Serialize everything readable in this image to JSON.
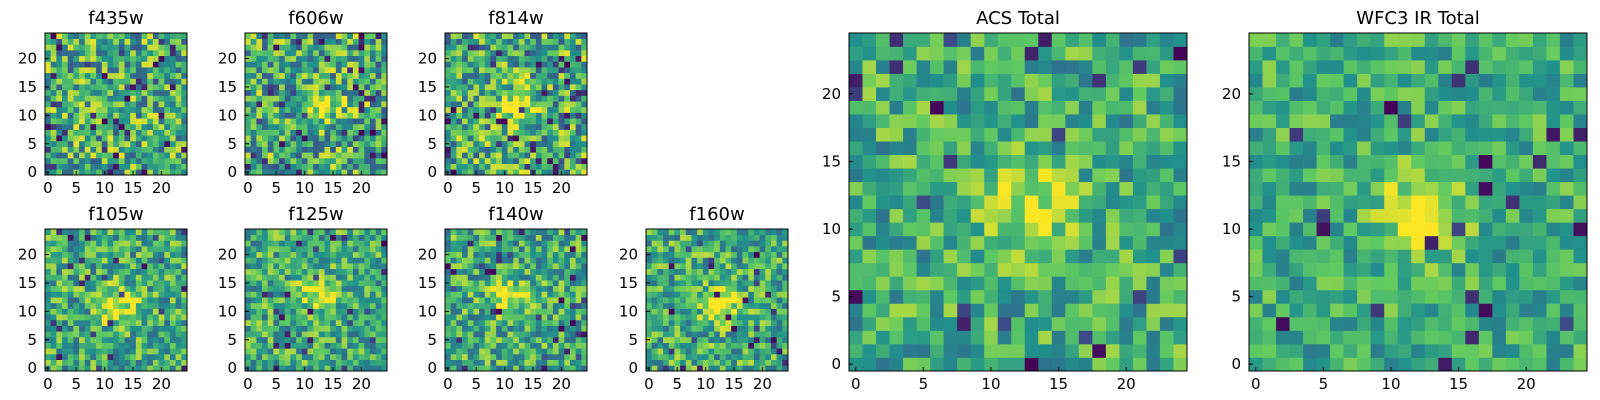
{
  "chart_data": {
    "type": "heatmap",
    "colormap": "viridis",
    "colormap_stops": [
      "#440154",
      "#3b528b",
      "#21918c",
      "#5ec962",
      "#fde725"
    ],
    "panels": [
      {
        "id": "f435w",
        "title": "f435w",
        "grid_size": 25,
        "x_ticks": [
          "0",
          "5",
          "10",
          "15",
          "20"
        ],
        "y_ticks": [
          "0",
          "5",
          "10",
          "15",
          "20"
        ],
        "source_center": null,
        "noise_level": 0.5,
        "dark_fraction": 0.06,
        "seed": 11
      },
      {
        "id": "f606w",
        "title": "f606w",
        "grid_size": 25,
        "x_ticks": [
          "0",
          "5",
          "10",
          "15",
          "20"
        ],
        "y_ticks": [
          "0",
          "5",
          "10",
          "15",
          "20"
        ],
        "source_center": [
          12.5,
          11.5
        ],
        "noise_level": 0.5,
        "dark_fraction": 0.07,
        "seed": 23
      },
      {
        "id": "f814w",
        "title": "f814w",
        "grid_size": 25,
        "x_ticks": [
          "0",
          "5",
          "10",
          "15",
          "20"
        ],
        "y_ticks": [
          "0",
          "5",
          "10",
          "15",
          "20"
        ],
        "source_center": [
          13,
          11.5
        ],
        "noise_level": 0.5,
        "dark_fraction": 0.07,
        "seed": 37
      },
      {
        "id": "f105w",
        "title": "f105w",
        "grid_size": 25,
        "x_ticks": [
          "0",
          "5",
          "10",
          "15",
          "20"
        ],
        "y_ticks": [
          "0",
          "5",
          "10",
          "15",
          "20"
        ],
        "source_center": [
          12.5,
          11
        ],
        "noise_level": 0.4,
        "dark_fraction": 0.05,
        "seed": 41
      },
      {
        "id": "f125w",
        "title": "f125w",
        "grid_size": 25,
        "x_ticks": [
          "0",
          "5",
          "10",
          "15",
          "20"
        ],
        "y_ticks": [
          "0",
          "5",
          "10",
          "15",
          "20"
        ],
        "source_center": [
          12.5,
          13
        ],
        "noise_level": 0.4,
        "dark_fraction": 0.05,
        "seed": 53
      },
      {
        "id": "f140w",
        "title": "f140w",
        "grid_size": 25,
        "x_ticks": [
          "0",
          "5",
          "10",
          "15",
          "20"
        ],
        "y_ticks": [
          "0",
          "5",
          "10",
          "15",
          "20"
        ],
        "source_center": [
          10.5,
          12.5
        ],
        "noise_level": 0.4,
        "dark_fraction": 0.05,
        "seed": 67
      },
      {
        "id": "f160w",
        "title": "f160w",
        "grid_size": 25,
        "x_ticks": [
          "0",
          "5",
          "10",
          "15",
          "20"
        ],
        "y_ticks": [
          "0",
          "5",
          "10",
          "15",
          "20"
        ],
        "source_center": [
          12.5,
          11.5
        ],
        "noise_level": 0.4,
        "dark_fraction": 0.05,
        "seed": 79
      },
      {
        "id": "acs_total",
        "title": "ACS Total",
        "grid_size": 25,
        "x_ticks": [
          "0",
          "5",
          "10",
          "15",
          "20"
        ],
        "y_ticks": [
          "0",
          "5",
          "10",
          "15",
          "20"
        ],
        "source_center": [
          13,
          11.5
        ],
        "noise_level": 0.35,
        "dark_fraction": 0.04,
        "seed": 97
      },
      {
        "id": "wfc3_ir_total",
        "title": "WFC3 IR Total",
        "grid_size": 25,
        "x_ticks": [
          "0",
          "5",
          "10",
          "15",
          "20"
        ],
        "y_ticks": [
          "0",
          "5",
          "10",
          "15",
          "20"
        ],
        "source_center": [
          12.5,
          11.5
        ],
        "noise_level": 0.3,
        "dark_fraction": 0.04,
        "seed": 131
      }
    ]
  }
}
